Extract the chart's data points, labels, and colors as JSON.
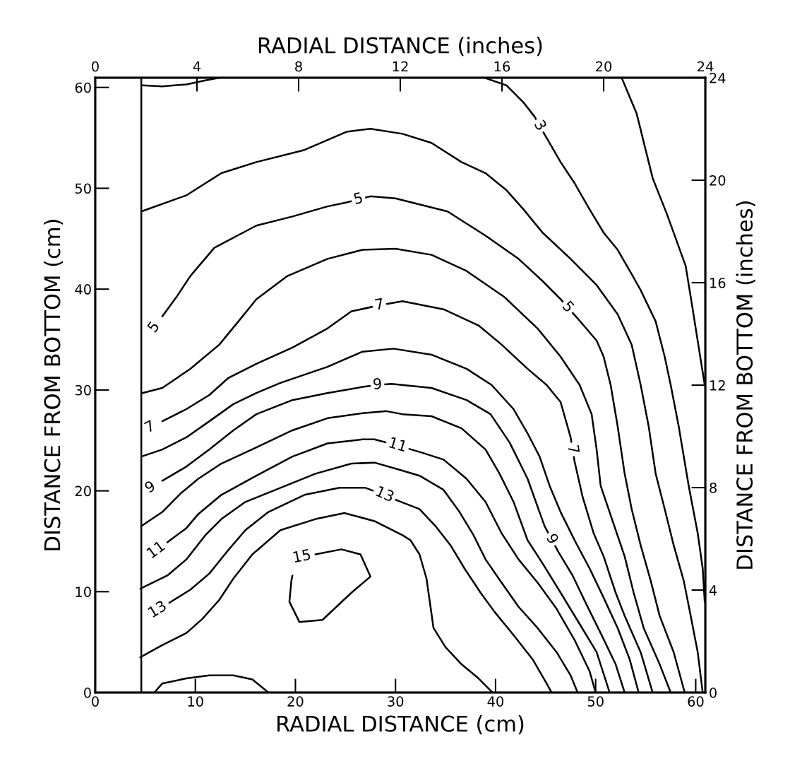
{
  "chart_data": {
    "type": "line",
    "xlabel": "RADIAL DISTANCE (cm)",
    "ylabel": "DISTANCE FROM BOTTOM (cm)",
    "x2label": "RADIAL DISTANCE (inches)",
    "y2label": "DISTANCE FROM BOTTOM (inches)",
    "xlim": [
      0,
      60.96
    ],
    "ylim": [
      0,
      60.96
    ],
    "xticks": [
      0,
      10,
      20,
      30,
      40,
      50,
      60
    ],
    "yticks": [
      0,
      10,
      20,
      30,
      40,
      50,
      60
    ],
    "x2lim": [
      0,
      24
    ],
    "x2ticks": [
      0,
      4,
      8,
      12,
      16,
      20,
      24
    ],
    "y2lim": [
      0,
      24
    ],
    "y2ticks": [
      0,
      4,
      8,
      12,
      16,
      20,
      24
    ],
    "annotations": [
      {
        "text": "3",
        "x": 44.4,
        "y": 56.2
      },
      {
        "text": "5",
        "x": 6.7,
        "y": 37.3
      },
      {
        "text": "5",
        "x": 26.3,
        "y": 48.9
      },
      {
        "text": "5",
        "x": 47.2,
        "y": 38.2
      },
      {
        "text": "7",
        "x": 6.7,
        "y": 26.9
      },
      {
        "text": "7",
        "x": 28.4,
        "y": 38.4
      },
      {
        "text": "7",
        "x": 47.7,
        "y": 24.1
      },
      {
        "text": "9",
        "x": 6.7,
        "y": 21.0
      },
      {
        "text": "9",
        "x": 28.2,
        "y": 30.5
      },
      {
        "text": "9",
        "x": 45.6,
        "y": 15.2
      },
      {
        "text": "11",
        "x": 7.2,
        "y": 14.9
      },
      {
        "text": "11",
        "x": 30.2,
        "y": 24.5
      },
      {
        "text": "13",
        "x": 7.4,
        "y": 8.9
      },
      {
        "text": "13",
        "x": 28.9,
        "y": 19.6
      },
      {
        "text": "15",
        "x": 22.0,
        "y": 13.7
      }
    ],
    "grid": false,
    "marker": "none",
    "line_style": "solid",
    "ref_lines": [
      {
        "axis": "x",
        "value": 4.6,
        "label": null,
        "color": "#000000",
        "line_style": "solid"
      }
    ],
    "series": [
      {
        "color": "#000000",
        "x": [
          52.6,
          54.1,
          55.7,
          57.1,
          59.0,
          59.7,
          60.9
        ],
        "values": [
          60.96,
          57.4,
          51.0,
          47.5,
          42.3,
          38.0,
          30.5
        ]
      },
      {
        "color": "#000000",
        "x": [
          38.9,
          41.1,
          42.8,
          43.9,
          44.4,
          45.1,
          46.5,
          47.9,
          49.4,
          50.8,
          52.2,
          53.6,
          54.5,
          56.0,
          56.9,
          57.5,
          58.3,
          59.3,
          60.2,
          60.7,
          60.9
        ],
        "values": [
          60.96,
          60.2,
          58.5,
          57.1,
          56.2,
          55.0,
          52.6,
          50.5,
          47.9,
          45.6,
          43.9,
          41.5,
          39.9,
          36.8,
          33.3,
          30.5,
          26.4,
          20.5,
          15.8,
          12.3,
          9.0
        ]
      },
      {
        "color": "#000000",
        "x": [
          4.6,
          9.1,
          12.6,
          16.1,
          20.9,
          25.1,
          27.5,
          30.7,
          33.6,
          36.6,
          39.0,
          41.1,
          42.8,
          44.7,
          47.5,
          50.1,
          52.2,
          53.6,
          54.5,
          55.3,
          56.0,
          56.9,
          57.8,
          58.8,
          59.5,
          60.2,
          60.7
        ],
        "values": [
          47.7,
          49.3,
          51.5,
          52.6,
          53.8,
          55.6,
          55.9,
          55.4,
          54.5,
          52.6,
          51.5,
          49.8,
          47.9,
          45.6,
          43.0,
          40.4,
          37.5,
          34.5,
          30.5,
          26.4,
          21.7,
          18.2,
          14.6,
          11.1,
          7.6,
          4.0,
          0
        ]
      },
      {
        "color": "#000000",
        "x": [
          6.7,
          8.1,
          9.5,
          11.9,
          16.1,
          19.7,
          23.2,
          25.1,
          26.3,
          27.5,
          30.0,
          35.2,
          39.0,
          42.3,
          44.7,
          46.5,
          47.2,
          48.2,
          50.1,
          50.8,
          51.5,
          52.2,
          52.9,
          53.6,
          54.5,
          55.5,
          56.4,
          57.8,
          58.9
        ],
        "values": [
          37.3,
          39.2,
          41.3,
          44.1,
          46.3,
          47.2,
          48.2,
          48.6,
          48.9,
          49.2,
          49.0,
          47.7,
          45.3,
          43.0,
          40.8,
          39.0,
          38.2,
          37.1,
          34.9,
          33.3,
          30.5,
          26.4,
          21.7,
          18.2,
          14.6,
          11.1,
          7.6,
          4.0,
          0
        ]
      },
      {
        "color": "#000000",
        "x": [
          4.7,
          6.7,
          9.5,
          12.4,
          14.3,
          16.1,
          19.2,
          23.2,
          26.7,
          30.0,
          33.6,
          37.1,
          40.9,
          44.2,
          46.5,
          48.4,
          49.6,
          50.1,
          50.5,
          51.7,
          52.9,
          53.8,
          54.8,
          56.4,
          57.5
        ],
        "values": [
          29.7,
          30.2,
          32.1,
          34.5,
          36.8,
          39.0,
          41.3,
          43.0,
          43.9,
          44.0,
          43.4,
          41.8,
          39.2,
          36.1,
          33.3,
          30.5,
          27.6,
          24.1,
          20.5,
          17.0,
          13.5,
          9.9,
          6.4,
          2.8,
          0
        ]
      },
      {
        "color": "#000000",
        "x": [
          6.7,
          9.1,
          11.4,
          13.3,
          16.1,
          19.7,
          23.2,
          25.6,
          28.4,
          30.7,
          34.8,
          38.3,
          40.6,
          43.2,
          45.1,
          46.5,
          47.5,
          47.7,
          47.9,
          48.7,
          49.8,
          50.8,
          52.0,
          52.9,
          54.5,
          55.7
        ],
        "values": [
          26.9,
          28.1,
          29.5,
          31.2,
          32.6,
          34.2,
          36.1,
          37.8,
          38.4,
          38.8,
          38.0,
          36.4,
          34.5,
          32.1,
          30.5,
          28.8,
          25.3,
          24.1,
          22.9,
          19.4,
          15.8,
          13.5,
          9.9,
          7.6,
          4.0,
          0
        ]
      },
      {
        "color": "#000000",
        "x": [
          4.6,
          6.7,
          9.1,
          11.4,
          13.8,
          16.1,
          18.5,
          23.2,
          26.7,
          29.8,
          33.6,
          37.1,
          39.6,
          41.8,
          43.2,
          44.4,
          45.4,
          46.5,
          47.9,
          49.4,
          50.8,
          52.2,
          53.4,
          54.3
        ],
        "values": [
          23.4,
          24.1,
          25.3,
          26.9,
          28.6,
          29.7,
          30.7,
          32.3,
          33.8,
          34.1,
          33.5,
          32.1,
          30.5,
          28.1,
          25.7,
          23.4,
          20.5,
          17.9,
          15.1,
          12.3,
          9.4,
          6.4,
          3.3,
          0
        ]
      },
      {
        "color": "#000000",
        "x": [
          6.7,
          9.1,
          11.4,
          13.8,
          16.1,
          19.7,
          23.2,
          26.7,
          28.2,
          29.6,
          33.6,
          37.1,
          39.5,
          41.4,
          43.2,
          44.9,
          45.6,
          46.3,
          47.7,
          49.1,
          50.5,
          52.0,
          52.9
        ],
        "values": [
          21.0,
          22.4,
          24.1,
          26.0,
          27.6,
          29.0,
          29.7,
          30.3,
          30.5,
          30.6,
          30.2,
          29.0,
          27.6,
          24.8,
          21.2,
          16.5,
          15.2,
          13.9,
          11.6,
          8.7,
          5.9,
          2.8,
          0
        ]
      },
      {
        "color": "#000000",
        "x": [
          4.6,
          6.7,
          8.6,
          10.3,
          12.6,
          16.1,
          19.7,
          23.2,
          26.7,
          29.1,
          30.7,
          33.6,
          36.6,
          39.0,
          40.4,
          41.8,
          43.2,
          44.7,
          46.5,
          48.4,
          50.1,
          51.4
        ],
        "values": [
          16.5,
          17.9,
          19.8,
          21.2,
          22.7,
          24.3,
          26.0,
          27.2,
          27.7,
          27.9,
          27.6,
          27.4,
          26.2,
          24.1,
          21.7,
          18.9,
          15.1,
          12.8,
          9.9,
          6.8,
          4.0,
          0
        ]
      },
      {
        "color": "#000000",
        "x": [
          7.2,
          9.1,
          10.3,
          12.6,
          16.1,
          19.7,
          23.2,
          26.7,
          27.9,
          30.2,
          32.6,
          34.8,
          37.1,
          39.0,
          40.6,
          42.3,
          44.2,
          46.1,
          47.9,
          49.4,
          50.0
        ],
        "values": [
          14.9,
          16.3,
          17.7,
          19.6,
          21.5,
          23.4,
          24.7,
          25.1,
          25.1,
          24.5,
          23.8,
          23.1,
          21.2,
          18.9,
          15.8,
          13.2,
          10.9,
          8.3,
          5.2,
          2.1,
          0
        ]
      },
      {
        "color": "#000000",
        "x": [
          4.5,
          7.2,
          9.1,
          11.0,
          12.6,
          15.0,
          18.5,
          22.0,
          25.6,
          27.9,
          30.7,
          32.4,
          34.8,
          36.4,
          37.8,
          39.0,
          40.6,
          42.3,
          44.2,
          46.1,
          47.5,
          48.2
        ],
        "values": [
          10.3,
          11.6,
          13.2,
          15.6,
          17.2,
          18.9,
          20.3,
          21.7,
          22.7,
          22.8,
          22.0,
          21.5,
          20.1,
          17.9,
          15.6,
          13.2,
          10.9,
          8.5,
          6.4,
          4.0,
          1.7,
          0
        ]
      },
      {
        "color": "#000000",
        "x": [
          7.4,
          9.5,
          11.4,
          13.1,
          15.0,
          17.3,
          20.9,
          24.4,
          27.0,
          28.9,
          30.3,
          32.4,
          34.0,
          35.5,
          36.9,
          38.5,
          39.9,
          41.8,
          43.7,
          45.1,
          45.6
        ],
        "values": [
          8.9,
          10.2,
          11.8,
          13.9,
          16.1,
          17.9,
          19.6,
          20.3,
          20.3,
          19.6,
          19.0,
          18.2,
          16.5,
          14.6,
          12.3,
          9.9,
          8.0,
          5.7,
          3.3,
          0.9,
          0
        ]
      },
      {
        "color": "#000000",
        "x": [
          4.5,
          6.7,
          9.1,
          10.7,
          12.4,
          13.8,
          15.7,
          18.5,
          22.0,
          24.9,
          27.9,
          30.7,
          31.5,
          32.4,
          33.1,
          33.3,
          33.8,
          35.0,
          36.6,
          38.3,
          39.7
        ],
        "values": [
          3.5,
          4.7,
          5.9,
          7.3,
          9.2,
          11.3,
          13.7,
          16.1,
          17.2,
          17.8,
          17.0,
          15.6,
          15.1,
          13.7,
          11.3,
          9.9,
          6.4,
          4.5,
          2.8,
          1.4,
          0
        ]
      },
      {
        "color": "#000000",
        "x": [
          22.0,
          24.6,
          26.5,
          27.5,
          25.6,
          22.7,
          20.4,
          19.4,
          19.6,
          19.7
        ],
        "values": [
          13.7,
          14.2,
          13.7,
          11.5,
          9.9,
          7.2,
          7.0,
          9.0,
          11.1,
          11.6
        ]
      },
      {
        "color": "#000000",
        "x": [
          4.7,
          6.7,
          9.1,
          11.0,
          12.4
        ],
        "values": [
          60.2,
          60.1,
          60.3,
          60.7,
          60.96
        ]
      },
      {
        "color": "#000000",
        "x": [
          5.9,
          6.7,
          9.1,
          11.4,
          13.8,
          15.7,
          17.3
        ],
        "values": [
          0,
          0.9,
          1.4,
          1.7,
          1.7,
          1.3,
          0
        ]
      }
    ]
  }
}
